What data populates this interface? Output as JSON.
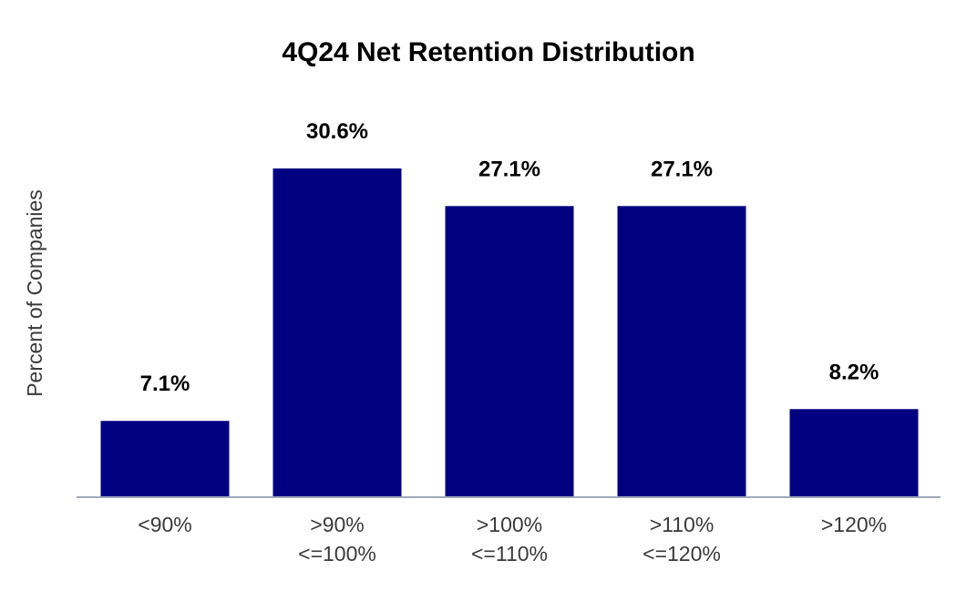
{
  "chart_data": {
    "type": "bar",
    "title": "4Q24 Net Retention Distribution",
    "xlabel": "",
    "ylabel": "Percent of Companies",
    "categories": [
      [
        "<90%"
      ],
      [
        ">90%",
        "<=100%"
      ],
      [
        ">100%",
        "<=110%"
      ],
      [
        ">110%",
        "<=120%"
      ],
      [
        ">120%"
      ]
    ],
    "values": [
      7.1,
      30.6,
      27.1,
      27.1,
      8.2
    ],
    "value_labels": [
      "7.1%",
      "30.6%",
      "27.1%",
      "27.1%",
      "8.2%"
    ],
    "ylim": [
      0,
      30.6
    ],
    "grid": false,
    "legend": "none",
    "colors": {
      "bar": "#000080",
      "axis": "#a0a8b8"
    }
  }
}
